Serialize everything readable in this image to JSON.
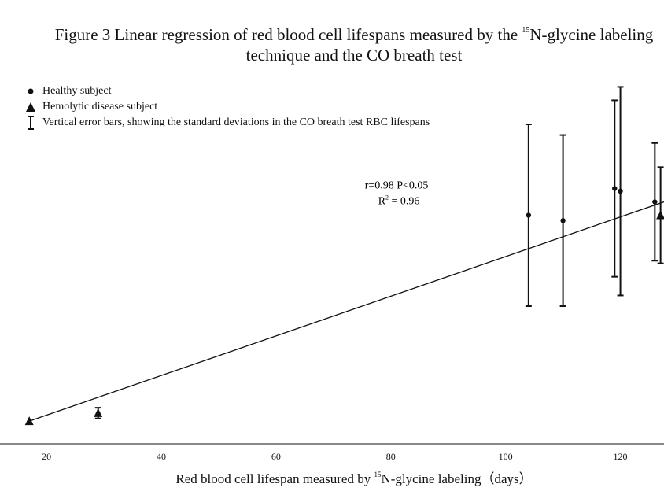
{
  "title": {
    "prefix": "Figure 3 Linear regression of red blood cell lifespans measured by the ",
    "sup": "15",
    "suffix": "N-glycine labeling",
    "line2": "technique and the CO breath test"
  },
  "legend": [
    {
      "marker": "dot-icon",
      "label": "Healthy subject"
    },
    {
      "marker": "triangle-icon",
      "label": "Hemolytic disease subject"
    },
    {
      "marker": "error-bar-icon",
      "label": "Vertical error bars, showing the standard deviations in the CO breath test RBC lifespans"
    }
  ],
  "annotation": {
    "line1": "r=0.98 P<0.05",
    "line2_base": "R",
    "line2_sup": "2",
    "line2_rest": " = 0.96"
  },
  "xlabel": {
    "prefix": "Red blood cell lifespan measured by ",
    "sup": "15",
    "suffix": "N-glycine labeling（days）"
  },
  "chart_data": {
    "type": "scatter",
    "xlim": [
      11.9,
      127.6
    ],
    "ylim": [
      3.5,
      169.5
    ],
    "x_ticks": [
      20,
      40,
      60,
      80,
      100,
      120
    ],
    "grid": false,
    "legend_position": "top-left",
    "series": [
      {
        "name": "Healthy subject",
        "marker": "circle",
        "points": [
          {
            "x": 104,
            "y": 89,
            "sd": 34
          },
          {
            "x": 110,
            "y": 87,
            "sd": 32
          },
          {
            "x": 119,
            "y": 99,
            "sd": 33
          },
          {
            "x": 120,
            "y": 98,
            "sd": 39
          },
          {
            "x": 126,
            "y": 94,
            "sd": 22
          }
        ]
      },
      {
        "name": "Hemolytic disease subject",
        "marker": "triangle",
        "points": [
          {
            "x": 17,
            "y": 12,
            "sd": 0
          },
          {
            "x": 29,
            "y": 15,
            "sd": 2
          },
          {
            "x": 127,
            "y": 89,
            "sd": 18
          }
        ]
      }
    ],
    "regression": {
      "x": [
        17,
        127.6
      ],
      "y": [
        12,
        94
      ]
    },
    "annotation_at": {
      "x": 81,
      "y": 94
    }
  }
}
